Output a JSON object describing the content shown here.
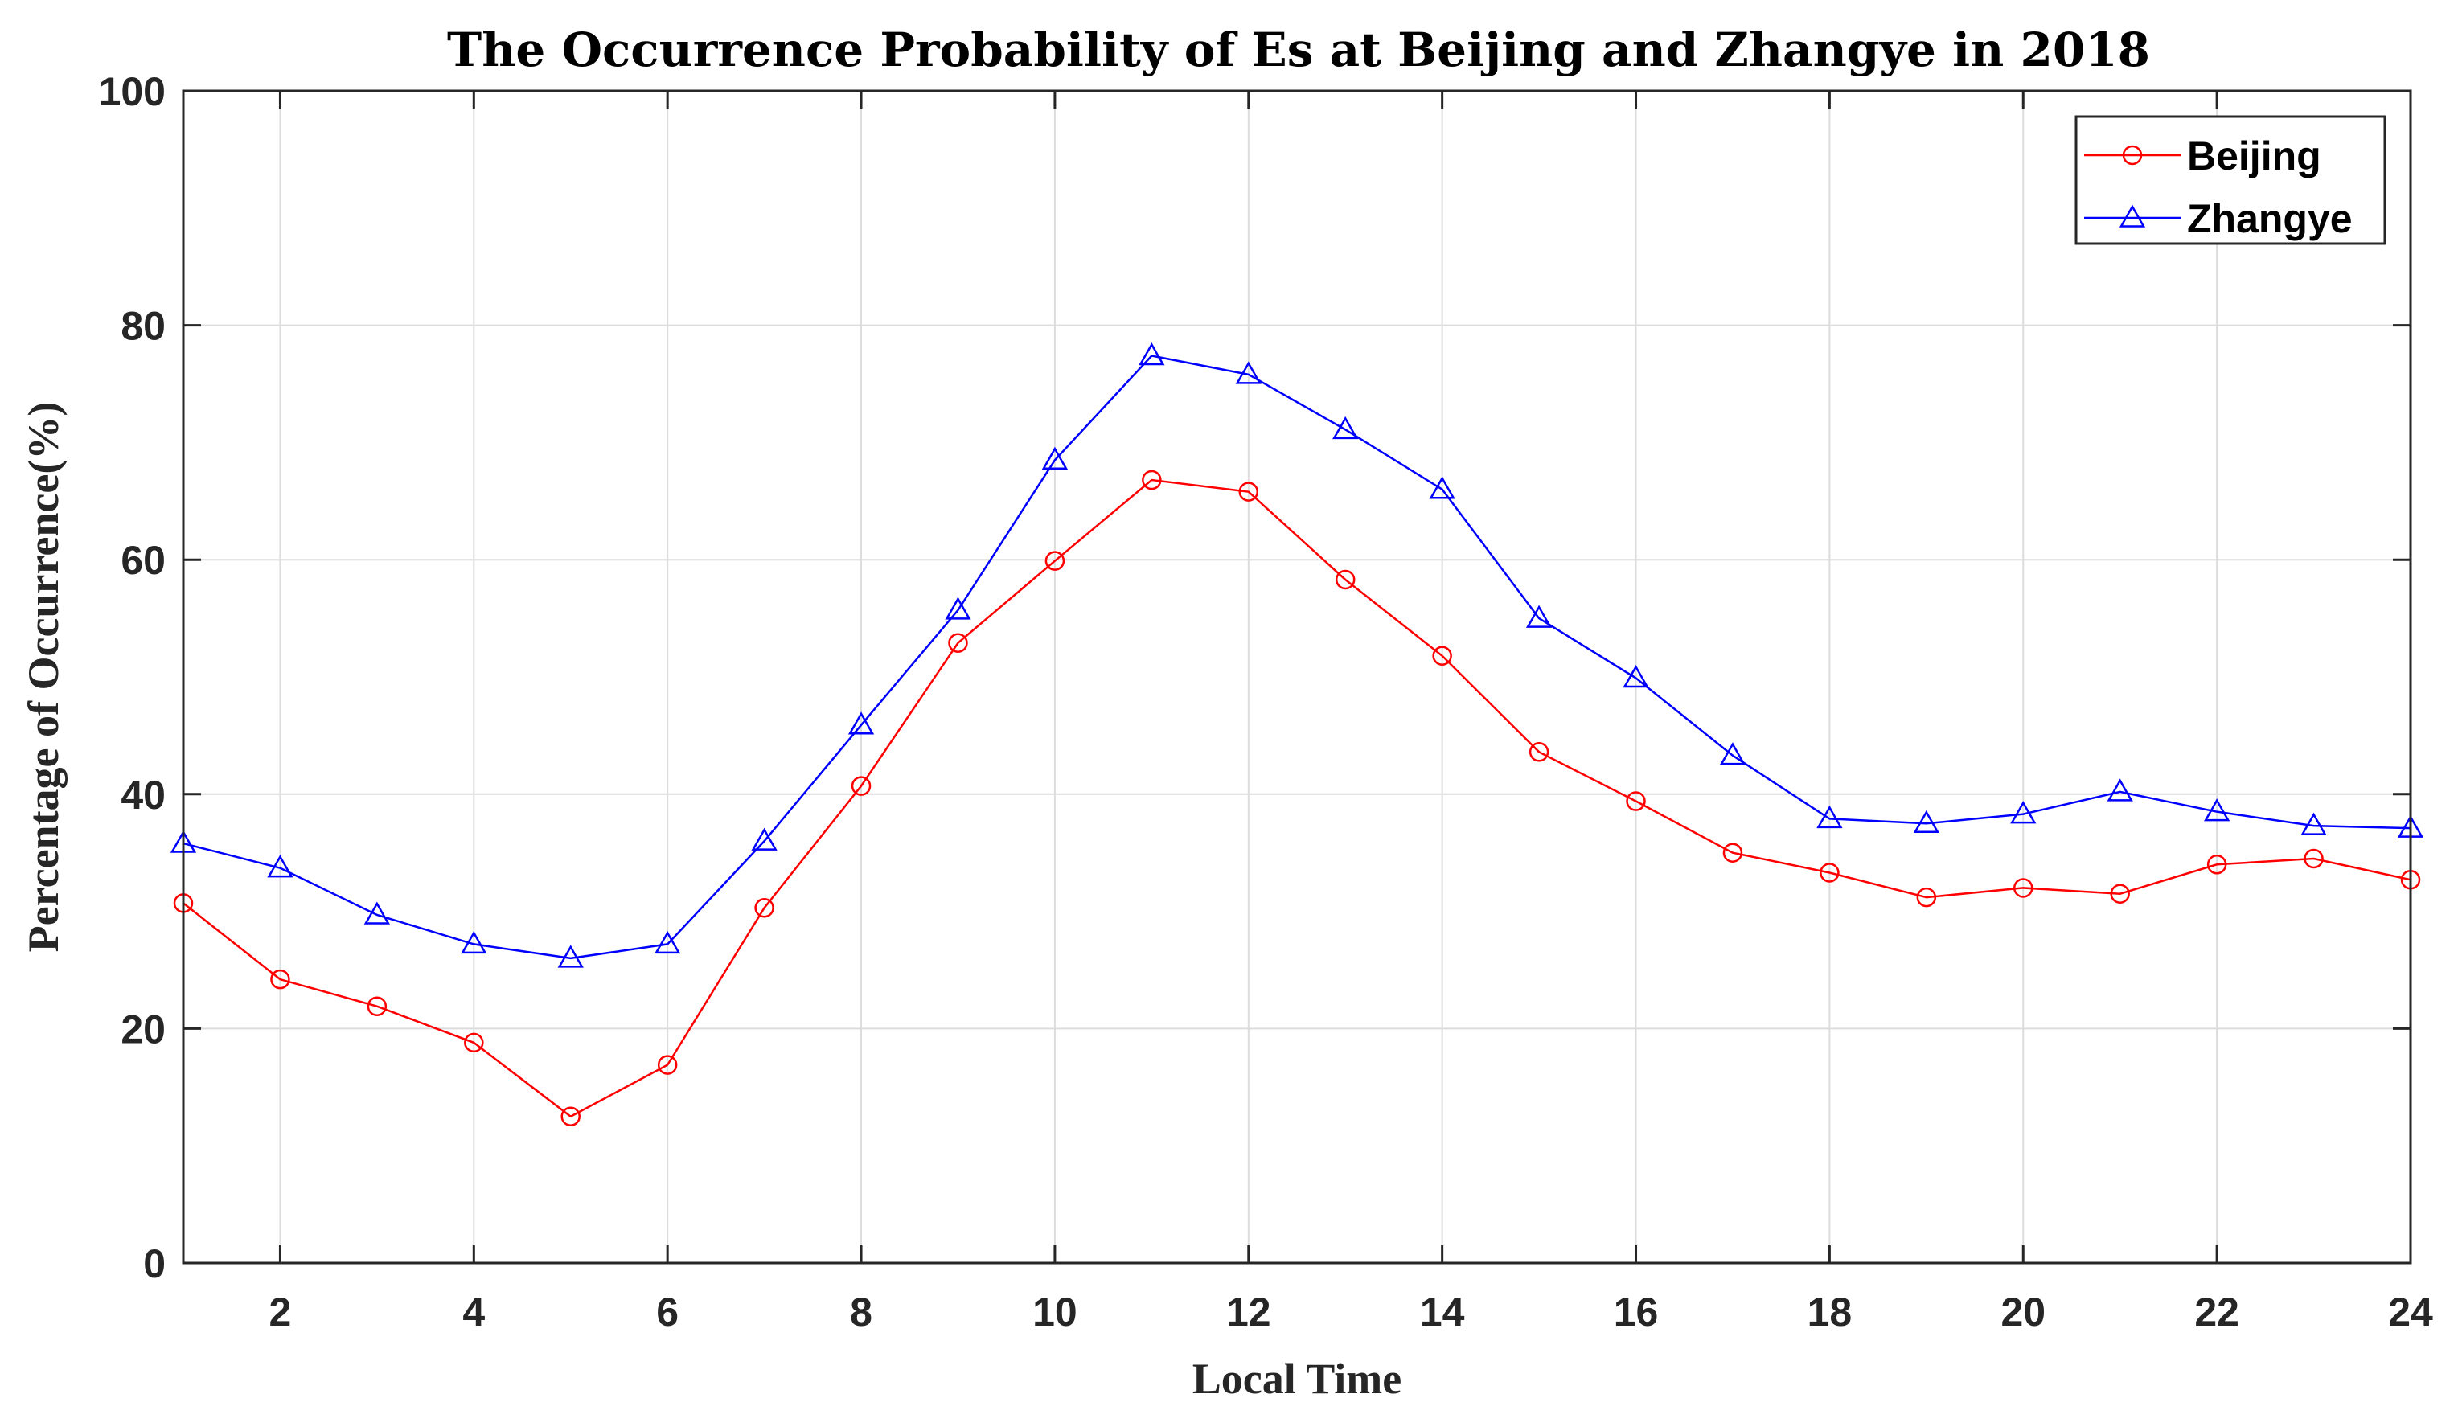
{
  "chart_data": {
    "type": "line",
    "title": "The Occurrence Probability of Es at Beijing and Zhangye in 2018",
    "xlabel": "Local Time",
    "ylabel": "Percentage of Occurrence(%)",
    "xlim": [
      1,
      24
    ],
    "ylim": [
      0,
      100
    ],
    "x_ticks": [
      2,
      4,
      6,
      8,
      10,
      12,
      14,
      16,
      18,
      20,
      22,
      24
    ],
    "y_ticks": [
      0,
      20,
      40,
      60,
      80,
      100
    ],
    "grid": true,
    "legend_position": "top-right",
    "x": [
      1,
      2,
      3,
      4,
      5,
      6,
      7,
      8,
      9,
      10,
      11,
      12,
      13,
      14,
      15,
      16,
      17,
      18,
      19,
      20,
      21,
      22,
      23,
      24
    ],
    "series": [
      {
        "name": "Beijing",
        "color": "#ff0000",
        "marker": "circle",
        "values": [
          30.7,
          24.2,
          21.9,
          18.8,
          12.5,
          16.9,
          30.3,
          40.7,
          52.9,
          59.9,
          66.8,
          65.8,
          58.3,
          51.8,
          43.6,
          39.4,
          35.0,
          33.3,
          31.2,
          32.0,
          31.5,
          34.0,
          34.5,
          32.7
        ]
      },
      {
        "name": "Zhangye",
        "color": "#0000ff",
        "marker": "triangle",
        "values": [
          35.8,
          33.7,
          29.7,
          27.2,
          26.0,
          27.2,
          36.0,
          45.9,
          55.7,
          68.5,
          77.4,
          75.8,
          71.1,
          66.0,
          55.0,
          49.9,
          43.3,
          37.9,
          37.5,
          38.3,
          40.2,
          38.5,
          37.3,
          37.1
        ]
      }
    ]
  }
}
